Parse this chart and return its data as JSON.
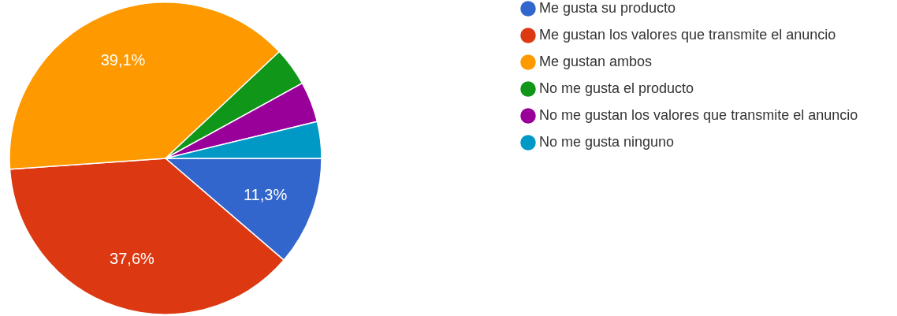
{
  "chart_data": {
    "type": "pie",
    "categories": [
      "Me gusta su producto",
      "Me gustan los valores que transmite el anuncio",
      "Me gustan ambos",
      "No me gusta el producto",
      "No me gustan los valores que transmite el anuncio",
      "No me gusta ninguno"
    ],
    "values": [
      11.3,
      37.6,
      39.1,
      4.0,
      4.2,
      3.8
    ],
    "colors": [
      "#3366cc",
      "#dc3912",
      "#ff9900",
      "#109618",
      "#990099",
      "#0099c6"
    ],
    "value_labels": [
      "11,3%",
      "37,6%",
      "39,1%",
      null,
      null,
      null
    ],
    "legend": "right"
  }
}
